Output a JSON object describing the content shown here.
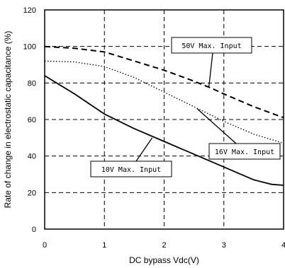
{
  "chart_data": {
    "type": "line",
    "xlabel": "DC bypass Vdc(V)",
    "ylabel": "Rate of change in electrostatic capacitance (%)",
    "xlim": [
      0,
      4
    ],
    "ylim": [
      0,
      120
    ],
    "x_ticks": [
      "0",
      "1",
      "2",
      "3",
      "4"
    ],
    "y_ticks": [
      "0",
      "20",
      "40",
      "60",
      "80",
      "100",
      "120"
    ],
    "grid": true,
    "grid_style": "dashed",
    "series": [
      {
        "name": "50V Max. Input",
        "style": "dashed",
        "points": [
          [
            0,
            100
          ],
          [
            0.5,
            99
          ],
          [
            1,
            97
          ],
          [
            1.5,
            92
          ],
          [
            2,
            87
          ],
          [
            2.5,
            81
          ],
          [
            2.8,
            77
          ],
          [
            3,
            74
          ],
          [
            3.5,
            67
          ],
          [
            4,
            61
          ]
        ]
      },
      {
        "name": "16V Max. Input",
        "style": "dotted",
        "points": [
          [
            0,
            92
          ],
          [
            0.5,
            91.5
          ],
          [
            1,
            89
          ],
          [
            1.5,
            83
          ],
          [
            2,
            75
          ],
          [
            2.5,
            67
          ],
          [
            3,
            59
          ],
          [
            3.5,
            52
          ],
          [
            4,
            47
          ]
        ]
      },
      {
        "name": "10V Max. Input",
        "style": "solid",
        "points": [
          [
            0,
            84
          ],
          [
            0.5,
            74
          ],
          [
            1,
            63
          ],
          [
            1.5,
            55
          ],
          [
            2,
            48
          ],
          [
            2.5,
            41
          ],
          [
            3,
            34
          ],
          [
            3.5,
            27
          ],
          [
            3.8,
            24.5
          ],
          [
            4,
            24
          ]
        ]
      }
    ],
    "annotations": [
      {
        "text": "50V Max. Input",
        "series": 0
      },
      {
        "text": "16V Max. Input",
        "series": 1
      },
      {
        "text": "10V Max. Input",
        "series": 2
      }
    ]
  }
}
